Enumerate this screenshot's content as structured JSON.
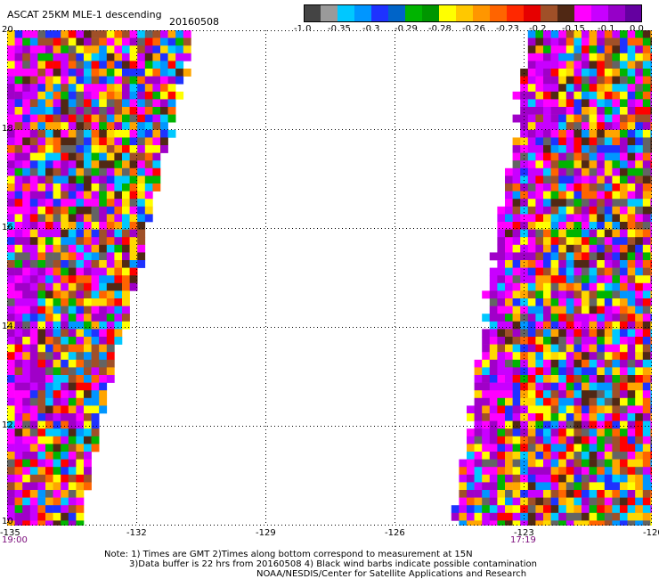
{
  "header": {
    "title": "ASCAT 25KM MLE-1 descending",
    "date": "20160508"
  },
  "colorbar": {
    "colors": [
      "#444444",
      "#9a9a9a",
      "#00c8ff",
      "#0096ff",
      "#1e32ff",
      "#0064c8",
      "#00b400",
      "#009600",
      "#ffff00",
      "#ffc800",
      "#ff9600",
      "#ff6400",
      "#ff2800",
      "#e60000",
      "#a05028",
      "#502814",
      "#ff00ff",
      "#c800ff",
      "#9600c8",
      "#6400a0"
    ],
    "labels": [
      "-1.0",
      "-0.35",
      "-0.3",
      "-0.29",
      "-0.28",
      "-0.26",
      "-0.23",
      "-0.2",
      "-0.15",
      "-0.1",
      "0.0"
    ]
  },
  "map": {
    "lat_labels": [
      "20",
      "18",
      "16",
      "14",
      "12",
      "10"
    ],
    "lon_labels": [
      "-135",
      "-132",
      "-129",
      "-126",
      "-123",
      "-120"
    ],
    "times": {
      "left": "19:00",
      "right": "17:19"
    },
    "palette": [
      "#ff00ff",
      "#c800ff",
      "#a000c8",
      "#ff0000",
      "#ff6400",
      "#ffa500",
      "#ffff00",
      "#ffd700",
      "#00b400",
      "#0096ff",
      "#1e32ff",
      "#00c8ff",
      "#a05028",
      "#502814",
      "#646464"
    ]
  },
  "notes": {
    "line1": "Note: 1) Times are GMT 2)Times along bottom correspond to measurement at 15N",
    "line2": "3)Data buffer is 22 hrs from 20160508 4) Black wind barbs indicate possible contamination",
    "line3": "NOAA/NESDIS/Center for Satellite Applications and Research"
  }
}
